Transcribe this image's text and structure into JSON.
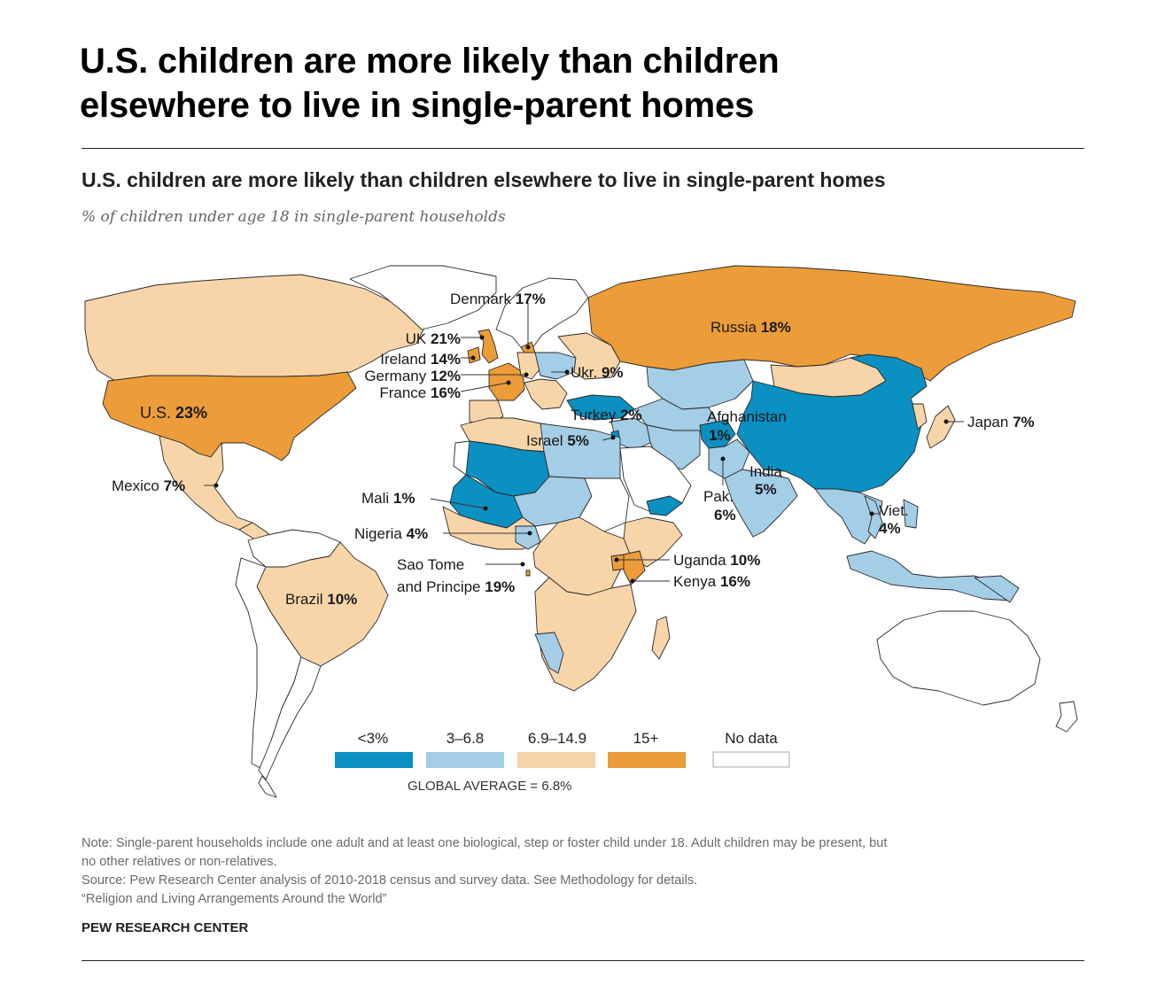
{
  "headline": {
    "line1": "U.S. children are more likely than children",
    "line2": "elsewhere to live in single-parent homes"
  },
  "chart": {
    "title": "U.S. children are more likely than children elsewhere to live in single-parent homes",
    "subtitle": "% of children under age 18 in single-parent households"
  },
  "legend": {
    "items": [
      {
        "label": "<3%",
        "color": "#0b90c2"
      },
      {
        "label": "3–6.8",
        "color": "#a4cde6"
      },
      {
        "label": "6.9–14.9",
        "color": "#f8d5a8"
      },
      {
        "label": "15+",
        "color": "#ec9c38"
      },
      {
        "label": "No data",
        "color": "#ffffff"
      }
    ],
    "global_average": "GLOBAL AVERAGE = 6.8%"
  },
  "labels": {
    "denmark": {
      "name": "Denmark",
      "value": "17%"
    },
    "russia": {
      "name": "Russia",
      "value": "18%"
    },
    "uk": {
      "name": "UK",
      "value": "21%"
    },
    "ireland": {
      "name": "Ireland",
      "value": "14%"
    },
    "germany": {
      "name": "Germany",
      "value": "12%"
    },
    "france": {
      "name": "France",
      "value": "16%"
    },
    "ukraine": {
      "name": "Ukr.",
      "value": "9%"
    },
    "turkey": {
      "name": "Turkey",
      "value": "2%"
    },
    "israel": {
      "name": "Israel",
      "value": "5%"
    },
    "afghanistan": {
      "name": "Afghanistan",
      "value": "1%"
    },
    "japan": {
      "name": "Japan",
      "value": "7%"
    },
    "us": {
      "name": "U.S.",
      "value": "23%"
    },
    "mexico": {
      "name": "Mexico",
      "value": "7%"
    },
    "india": {
      "name": "India",
      "value": "5%"
    },
    "mali": {
      "name": "Mali",
      "value": "1%"
    },
    "pakistan": {
      "name": "Pak.",
      "value": "6%"
    },
    "vietnam": {
      "name": "Viet.",
      "value": "4%"
    },
    "nigeria": {
      "name": "Nigeria",
      "value": "4%"
    },
    "saotome": {
      "name1": "Sao Tome",
      "name2": "and Principe",
      "value": "19%"
    },
    "uganda": {
      "name": "Uganda",
      "value": "10%"
    },
    "kenya": {
      "name": "Kenya",
      "value": "16%"
    },
    "brazil": {
      "name": "Brazil",
      "value": "10%"
    }
  },
  "notes": {
    "line1": "Note: Single-parent households include one adult and at least one biological, step or foster child under 18. Adult children may be present, but",
    "line2": "no other relatives or non-relatives.",
    "line3": "Source: Pew Research Center analysis of 2010-2018 census and survey data. See Methodology for details.",
    "line4": "“Religion and Living Arrangements Around the World”",
    "brand": "PEW RESEARCH CENTER"
  }
}
